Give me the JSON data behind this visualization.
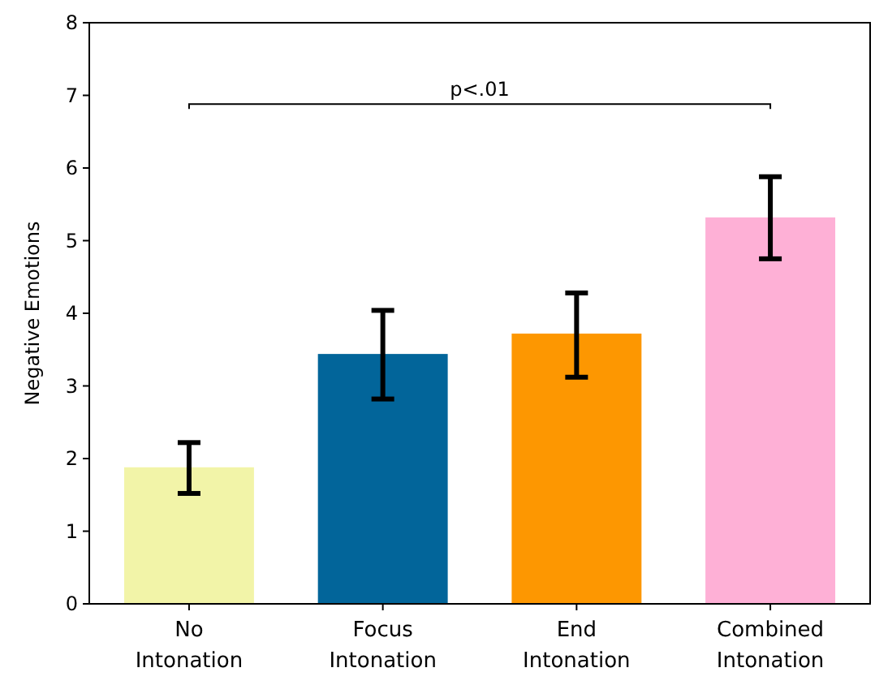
{
  "chart_data": {
    "type": "bar",
    "ylabel": "Negative Emotions",
    "categories": [
      "No Intonation",
      "Focus Intonation",
      "End Intonation",
      "Combined Intonation"
    ],
    "values": [
      1.88,
      3.44,
      3.72,
      5.32
    ],
    "errors": [
      [
        1.52,
        2.22
      ],
      [
        2.82,
        4.04
      ],
      [
        3.12,
        4.28
      ],
      [
        4.75,
        5.88
      ]
    ],
    "colors": [
      "#f2f4a8",
      "#02659a",
      "#fd9701",
      "#feb0d6"
    ],
    "ylim": [
      0,
      8
    ],
    "yticks": [
      0,
      1,
      2,
      3,
      4,
      5,
      6,
      7,
      8
    ],
    "grid": false,
    "annotations": [
      "p<.01"
    ]
  }
}
